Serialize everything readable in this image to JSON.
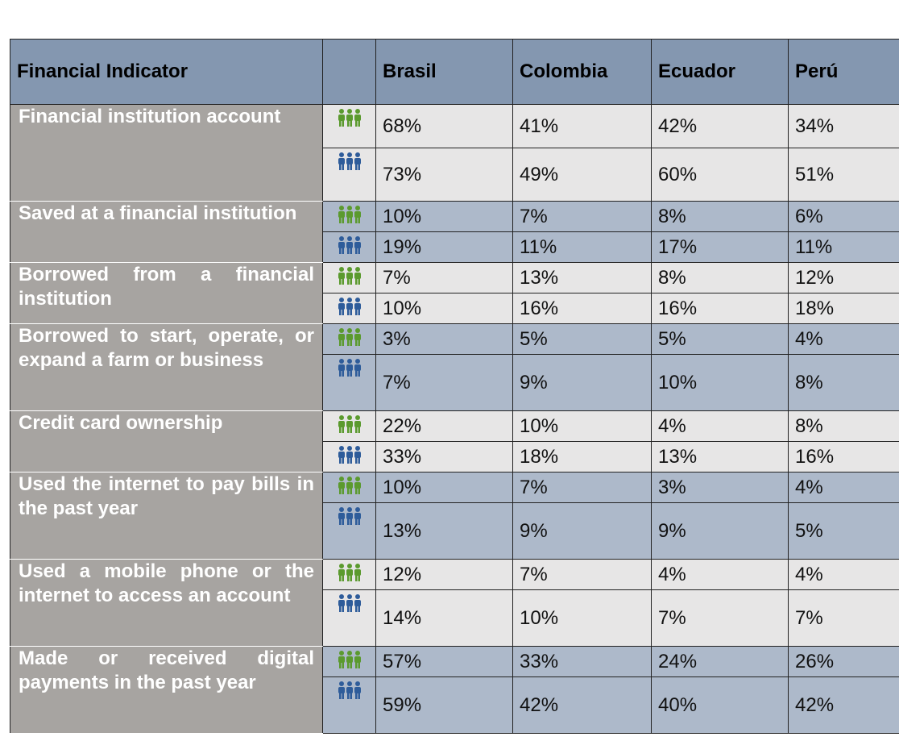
{
  "table": {
    "headers": [
      "Financial Indicator",
      "Brasil",
      "Colombia",
      "Ecuador",
      "Perú"
    ],
    "rows": [
      {
        "indicator": "Financial institution account",
        "values": [
          [
            "68%",
            "41%",
            "42%",
            "34%"
          ],
          [
            "73%",
            "49%",
            "60%",
            "51%"
          ]
        ]
      },
      {
        "indicator": "Saved at a financial institution",
        "values": [
          [
            "10%",
            "7%",
            "8%",
            "6%"
          ],
          [
            "19%",
            "11%",
            "17%",
            "11%"
          ]
        ]
      },
      {
        "indicator": "Borrowed from a financial institution",
        "values": [
          [
            "7%",
            "13%",
            "8%",
            "12%"
          ],
          [
            "10%",
            "16%",
            "16%",
            "18%"
          ]
        ]
      },
      {
        "indicator": "Borrowed to start, operate, or expand a farm or business",
        "values": [
          [
            "3%",
            "5%",
            "5%",
            "4%"
          ],
          [
            "7%",
            "9%",
            "10%",
            "8%"
          ]
        ]
      },
      {
        "indicator": "Credit card ownership",
        "values": [
          [
            "22%",
            "10%",
            "4%",
            "8%"
          ],
          [
            "33%",
            "18%",
            "13%",
            "16%"
          ]
        ]
      },
      {
        "indicator": "Used the internet to pay bills in the past year",
        "values": [
          [
            "10%",
            "7%",
            "3%",
            "4%"
          ],
          [
            "13%",
            "9%",
            "9%",
            "5%"
          ]
        ]
      },
      {
        "indicator": "Used a mobile phone or the internet to access an account",
        "values": [
          [
            "12%",
            "7%",
            "4%",
            "4%"
          ],
          [
            "14%",
            "10%",
            "7%",
            "7%"
          ]
        ]
      },
      {
        "indicator": "Made or received digital payments in the past year",
        "values": [
          [
            "57%",
            "33%",
            "24%",
            "26%"
          ],
          [
            "59%",
            "42%",
            "40%",
            "42%"
          ]
        ]
      }
    ]
  }
}
